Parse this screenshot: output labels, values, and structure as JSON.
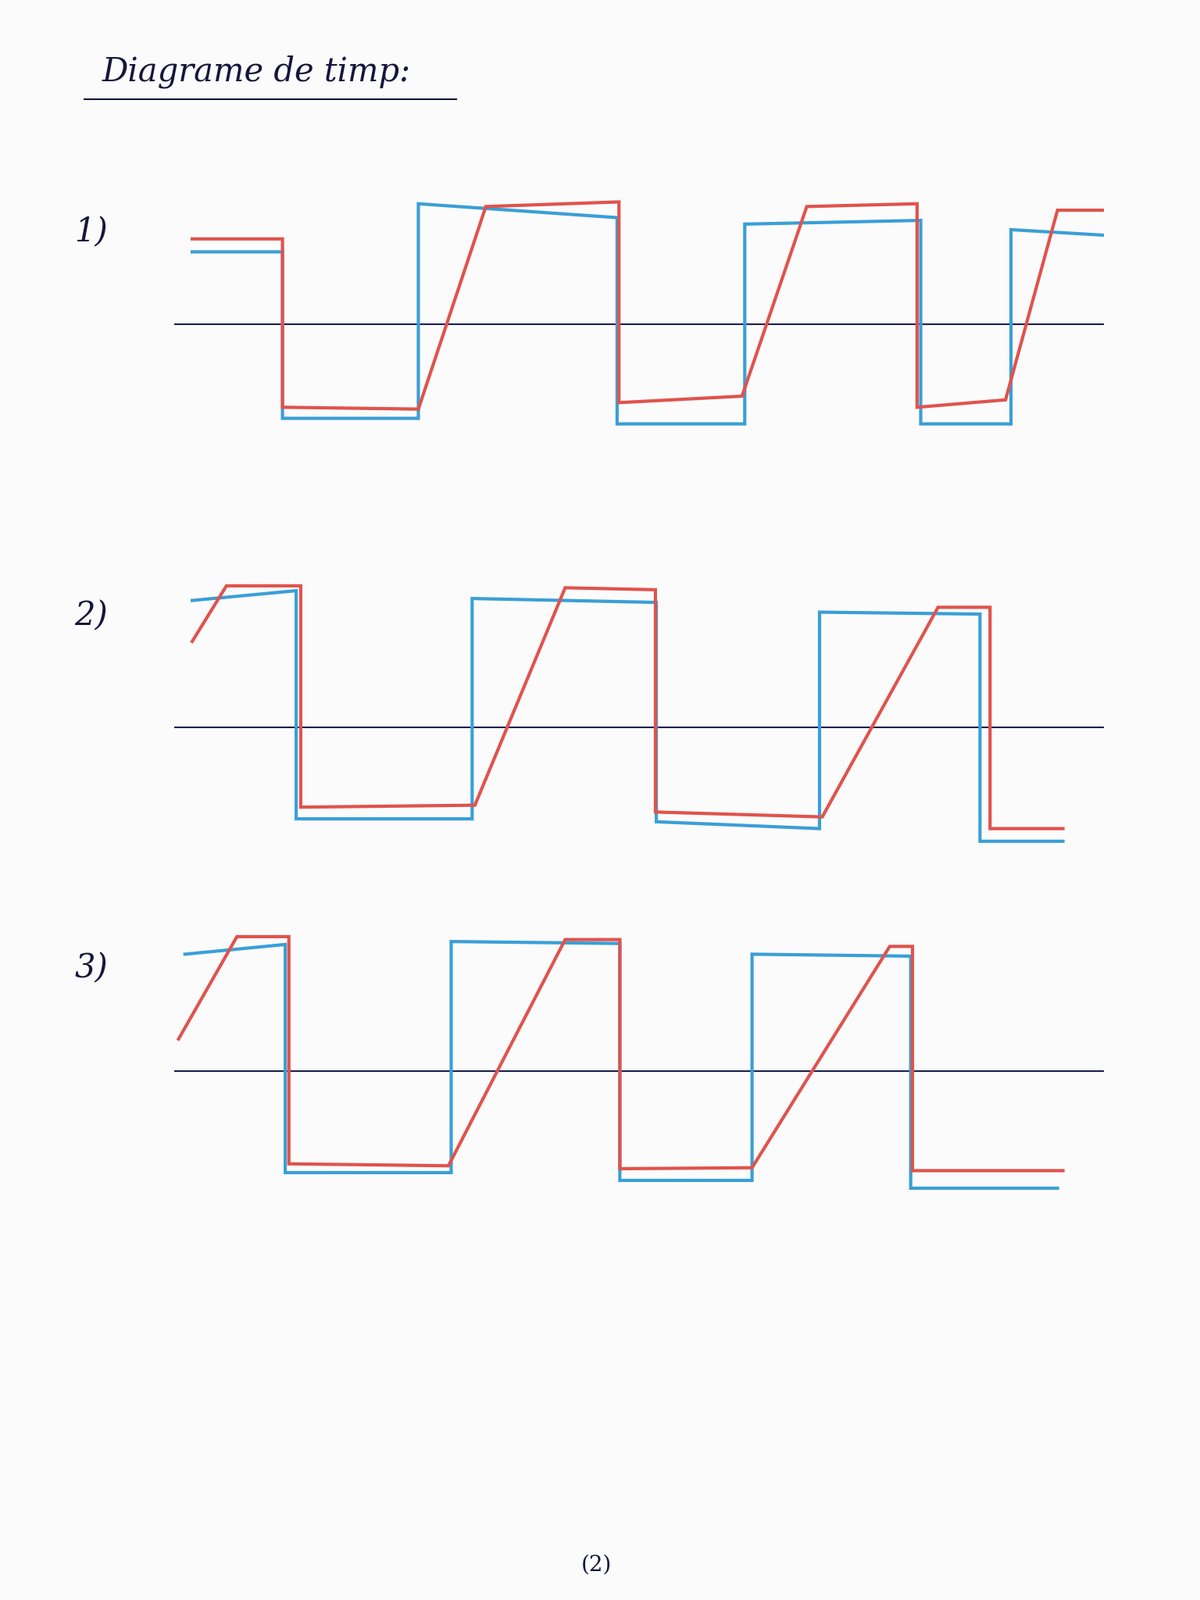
{
  "title": "Diagrame de timp:",
  "page_number": "(2)",
  "chart_data": [
    {
      "type": "line",
      "title": "1)",
      "xlim": [
        -2,
        100
      ],
      "ylim": [
        -1.6,
        1.6
      ],
      "tick_labels": false,
      "grid": false,
      "series": [
        {
          "color": "#3a9fd6",
          "x": [
            0,
            9.9,
            9.9,
            24.8,
            24.8,
            46.6,
            46.6,
            60.6,
            60.6,
            79.9,
            79.9,
            89.8,
            89.8,
            100
          ],
          "values": [
            0.78,
            0.78,
            -1.02,
            -1.02,
            1.3,
            1.15,
            -1.08,
            -1.08,
            1.08,
            1.12,
            -1.08,
            -1.08,
            1.02,
            0.96
          ]
        },
        {
          "color": "#e0534d",
          "x": [
            0,
            9.9,
            9.9,
            24.8,
            32.2,
            46.8,
            46.8,
            60.3,
            67.4,
            79.5,
            79.5,
            89.2,
            94.9,
            100
          ],
          "values": [
            0.92,
            0.92,
            -0.9,
            -0.92,
            1.27,
            1.32,
            -0.85,
            -0.78,
            1.27,
            1.3,
            -0.9,
            -0.82,
            1.23,
            1.23
          ]
        }
      ]
    },
    {
      "type": "line",
      "title": "2)",
      "xlim": [
        -2,
        100
      ],
      "ylim": [
        -1.6,
        1.6
      ],
      "tick_labels": false,
      "grid": false,
      "series": [
        {
          "color": "#3a9fd6",
          "x": [
            0,
            11.4,
            11.4,
            30.7,
            30.7,
            50.9,
            50.9,
            68.8,
            68.8,
            86.4,
            86.4,
            95.5
          ],
          "values": [
            1.3,
            1.4,
            -0.94,
            -0.94,
            1.32,
            1.28,
            -0.97,
            -1.04,
            1.18,
            1.16,
            -1.17,
            -1.17
          ]
        },
        {
          "color": "#e0534d",
          "x": [
            0,
            3.75,
            11.9,
            11.9,
            31.0,
            40.9,
            50.8,
            50.8,
            69.1,
            81.8,
            87.5,
            87.5,
            95.5
          ],
          "values": [
            0.88,
            1.45,
            1.45,
            -0.82,
            -0.8,
            1.43,
            1.41,
            -0.87,
            -0.92,
            1.23,
            1.23,
            -1.04,
            -1.04
          ]
        }
      ]
    },
    {
      "type": "line",
      "title": "3)",
      "xlim": [
        -2,
        100
      ],
      "ylim": [
        -1.6,
        1.6
      ],
      "tick_labels": false,
      "grid": false,
      "series": [
        {
          "color": "#3a9fd6",
          "x": [
            -0.8,
            10.2,
            10.2,
            28.4,
            28.4,
            46.9,
            46.9,
            61.4,
            61.4,
            78.8,
            78.8,
            94.9
          ],
          "values": [
            1.2,
            1.3,
            -1.04,
            -1.04,
            1.33,
            1.31,
            -1.12,
            -1.12,
            1.2,
            1.18,
            -1.2,
            -1.2
          ]
        },
        {
          "color": "#e0534d",
          "x": [
            -1.5,
            4.9,
            10.6,
            10.6,
            28.1,
            40.9,
            46.9,
            46.9,
            61.4,
            76.5,
            79.0,
            79.0,
            95.5
          ],
          "values": [
            0.33,
            1.38,
            1.38,
            -0.95,
            -0.97,
            1.35,
            1.35,
            -1.0,
            -0.99,
            1.28,
            1.28,
            -1.02,
            -1.02
          ]
        }
      ]
    }
  ]
}
